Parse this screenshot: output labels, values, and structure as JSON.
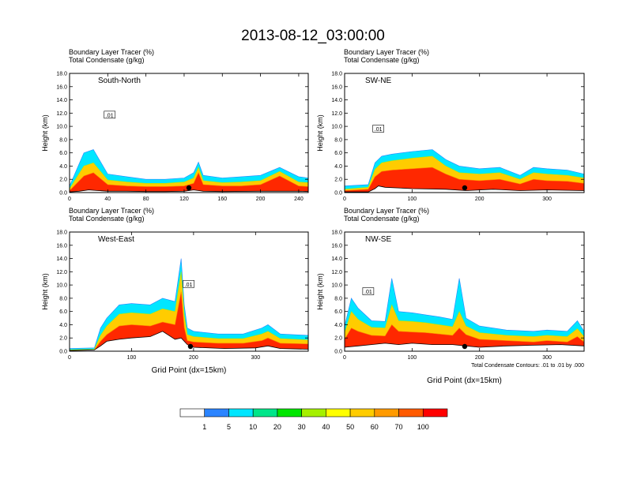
{
  "figure": {
    "title": "2013-08-12_03:00:00",
    "footnote": "Total Condensate Contours: .01 to .01 by .000"
  },
  "colorbar": {
    "labels": [
      "1",
      "5",
      "10",
      "20",
      "30",
      "40",
      "50",
      "60",
      "70",
      "100"
    ],
    "colors": [
      "#ffffff",
      "#2b84ff",
      "#00e6ff",
      "#00e68a",
      "#00e600",
      "#a5f000",
      "#ffff00",
      "#ffcc00",
      "#ff9a00",
      "#ff5a00",
      "#ff0000"
    ]
  },
  "chart_data": [
    {
      "type": "area",
      "panel_title": "South-North",
      "header_lines": [
        "Boundary Layer Tracer   (%)",
        "Total Condensate   (g/kg)"
      ],
      "ylabel": "Height (km)",
      "xlabel": "",
      "xlim": [
        0,
        250
      ],
      "ylim": [
        0,
        18
      ],
      "xticks": [
        0,
        40,
        80,
        120,
        160,
        200,
        240
      ],
      "yticks": [
        "0.0",
        "2.0",
        "4.0",
        "6.0",
        "8.0",
        "10.0",
        "12.0",
        "14.0",
        "16.0",
        "18.0"
      ],
      "contour_label": ".01",
      "marker_x": 125,
      "contour_label_at": [
        42,
        11.7
      ],
      "series": [
        {
          "x": [
            0,
            15,
            25,
            40,
            60,
            80,
            100,
            120,
            130,
            135,
            140,
            160,
            180,
            200,
            220,
            240,
            250
          ],
          "top": [
            1.0,
            6.0,
            6.5,
            2.8,
            2.4,
            2.0,
            2.0,
            2.2,
            3.0,
            4.6,
            2.6,
            2.2,
            2.4,
            2.6,
            3.8,
            2.4,
            2.2
          ]
        },
        {
          "x": [
            0,
            15,
            25,
            40,
            60,
            80,
            100,
            120,
            130,
            135,
            140,
            160,
            180,
            200,
            220,
            240,
            250
          ],
          "top": [
            0.6,
            4.0,
            4.5,
            1.9,
            1.6,
            1.4,
            1.4,
            1.6,
            2.2,
            3.8,
            1.8,
            1.5,
            1.6,
            1.8,
            3.2,
            1.6,
            1.5
          ]
        },
        {
          "x": [
            0,
            15,
            25,
            40,
            60,
            80,
            100,
            120,
            130,
            135,
            140,
            160,
            180,
            200,
            220,
            240,
            250
          ],
          "top": [
            0.3,
            2.5,
            3.0,
            1.2,
            1.0,
            0.9,
            0.9,
            1.0,
            1.4,
            3.0,
            1.2,
            1.0,
            1.0,
            1.2,
            2.5,
            1.0,
            0.9
          ]
        }
      ],
      "terrain": {
        "x": [
          0,
          10,
          20,
          30,
          40,
          60,
          80,
          100,
          120,
          130,
          140,
          160,
          200,
          240,
          250
        ],
        "h": [
          0.1,
          0.2,
          0.4,
          0.3,
          0.2,
          0.2,
          0.15,
          0.15,
          0.2,
          0.4,
          0.2,
          0.15,
          0.2,
          0.2,
          0.15
        ]
      }
    },
    {
      "type": "area",
      "panel_title": "SW-NE",
      "header_lines": [
        "Boundary Layer Tracer   (%)",
        "Total Condensate   (g/kg)"
      ],
      "ylabel": "Height (km)",
      "xlabel": "",
      "xlim": [
        0,
        355
      ],
      "ylim": [
        0,
        18
      ],
      "xticks": [
        0,
        100,
        200,
        300
      ],
      "yticks": [
        "0.0",
        "2.0",
        "4.0",
        "6.0",
        "8.0",
        "10.0",
        "12.0",
        "14.0",
        "16.0",
        "18.0"
      ],
      "contour_label": ".01",
      "marker_x": 178,
      "contour_label_at": [
        50,
        9.6
      ],
      "series": [
        {
          "x": [
            0,
            35,
            45,
            55,
            70,
            100,
            130,
            150,
            170,
            200,
            230,
            260,
            280,
            300,
            330,
            355
          ],
          "top": [
            1.0,
            1.2,
            4.5,
            5.5,
            5.8,
            6.2,
            6.5,
            5.0,
            4.0,
            3.6,
            3.8,
            2.6,
            3.8,
            3.6,
            3.4,
            2.8
          ]
        },
        {
          "x": [
            0,
            35,
            45,
            55,
            70,
            100,
            130,
            150,
            170,
            200,
            230,
            260,
            280,
            300,
            330,
            355
          ],
          "top": [
            0.5,
            0.8,
            3.5,
            4.5,
            4.8,
            5.2,
            5.5,
            4.0,
            3.0,
            2.8,
            3.0,
            2.0,
            3.0,
            2.8,
            2.6,
            2.2
          ]
        },
        {
          "x": [
            0,
            35,
            45,
            55,
            70,
            100,
            130,
            150,
            170,
            200,
            230,
            260,
            280,
            300,
            330,
            355
          ],
          "top": [
            0.3,
            0.5,
            2.4,
            3.2,
            3.4,
            3.6,
            3.8,
            2.8,
            2.0,
            1.8,
            2.0,
            1.3,
            2.0,
            1.8,
            1.7,
            1.4
          ]
        }
      ],
      "terrain": {
        "x": [
          0,
          35,
          45,
          50,
          60,
          100,
          150,
          180,
          220,
          260,
          300,
          355
        ],
        "h": [
          0.1,
          0.1,
          0.6,
          1.0,
          0.8,
          0.6,
          0.5,
          0.3,
          0.5,
          0.3,
          0.4,
          0.3
        ]
      }
    },
    {
      "type": "area",
      "panel_title": "West-East",
      "header_lines": [
        "Boundary Layer Tracer   (%)",
        "Total Condensate   (g/kg)"
      ],
      "ylabel": "Height (km)",
      "xlabel": "Grid Point (dx=15km)",
      "xlim": [
        0,
        385
      ],
      "ylim": [
        0,
        18
      ],
      "xticks": [
        0,
        100,
        200,
        300
      ],
      "yticks": [
        "0.0",
        "2.0",
        "4.0",
        "6.0",
        "8.0",
        "10.0",
        "12.0",
        "14.0",
        "16.0",
        "18.0"
      ],
      "contour_label": ".01",
      "marker_x": 195,
      "contour_label_at": [
        192,
        10.1
      ],
      "series": [
        {
          "x": [
            0,
            40,
            50,
            60,
            80,
            100,
            130,
            150,
            170,
            180,
            185,
            190,
            200,
            240,
            280,
            310,
            320,
            340,
            385
          ],
          "top": [
            0.4,
            0.5,
            3.5,
            5.0,
            7.0,
            7.2,
            7.0,
            8.0,
            7.5,
            14.0,
            7.0,
            3.5,
            3.0,
            2.6,
            2.6,
            3.5,
            4.0,
            2.6,
            2.4
          ]
        },
        {
          "x": [
            0,
            40,
            50,
            60,
            80,
            100,
            130,
            150,
            170,
            180,
            185,
            190,
            200,
            240,
            280,
            310,
            320,
            340,
            385
          ],
          "top": [
            0.2,
            0.3,
            2.4,
            3.8,
            5.6,
            5.8,
            5.6,
            6.4,
            6.0,
            12.0,
            5.5,
            2.5,
            2.2,
            1.9,
            1.9,
            2.6,
            3.0,
            1.9,
            1.7
          ]
        },
        {
          "x": [
            0,
            40,
            50,
            60,
            80,
            100,
            130,
            150,
            170,
            180,
            185,
            190,
            200,
            240,
            280,
            310,
            320,
            340,
            385
          ],
          "top": [
            0.1,
            0.2,
            1.5,
            2.5,
            3.8,
            4.0,
            3.8,
            4.4,
            4.0,
            9.0,
            3.6,
            1.6,
            1.4,
            1.2,
            1.2,
            1.6,
            2.0,
            1.2,
            1.1
          ]
        }
      ],
      "terrain": {
        "x": [
          0,
          40,
          50,
          60,
          80,
          100,
          130,
          150,
          170,
          180,
          190,
          200,
          250,
          300,
          320,
          340,
          385
        ],
        "h": [
          0.1,
          0.2,
          0.8,
          1.5,
          1.8,
          2.0,
          2.2,
          3.0,
          1.8,
          2.0,
          1.0,
          0.6,
          0.4,
          0.5,
          0.8,
          0.4,
          0.3
        ]
      }
    },
    {
      "type": "area",
      "panel_title": "NW-SE",
      "header_lines": [
        "Boundary Layer Tracer   (%)",
        "Total Condensate   (g/kg)"
      ],
      "ylabel": "Height (km)",
      "xlabel": "Grid Point (dx=15km)",
      "xlim": [
        0,
        355
      ],
      "ylim": [
        0,
        18
      ],
      "xticks": [
        0,
        100,
        200,
        300
      ],
      "yticks": [
        "0.0",
        "2.0",
        "4.0",
        "6.0",
        "8.0",
        "10.0",
        "12.0",
        "14.0",
        "16.0",
        "18.0"
      ],
      "contour_label": ".01",
      "marker_x": 178,
      "contour_label_at": [
        35,
        9.0
      ],
      "series": [
        {
          "x": [
            0,
            10,
            20,
            40,
            60,
            70,
            80,
            100,
            120,
            140,
            160,
            170,
            180,
            200,
            240,
            280,
            300,
            330,
            345,
            355
          ],
          "top": [
            3.8,
            8.0,
            6.5,
            4.6,
            4.5,
            11.0,
            6.0,
            5.8,
            5.5,
            5.2,
            4.8,
            11.0,
            5.0,
            3.8,
            3.2,
            3.0,
            3.2,
            3.0,
            4.6,
            3.0
          ]
        },
        {
          "x": [
            0,
            10,
            20,
            40,
            60,
            70,
            80,
            100,
            120,
            140,
            160,
            170,
            180,
            200,
            240,
            280,
            300,
            330,
            345,
            355
          ],
          "top": [
            2.8,
            6.0,
            4.8,
            3.6,
            3.5,
            7.0,
            4.6,
            4.5,
            4.3,
            4.0,
            3.7,
            6.0,
            3.8,
            2.8,
            2.4,
            2.2,
            2.4,
            2.2,
            3.4,
            2.2
          ]
        },
        {
          "x": [
            0,
            10,
            20,
            40,
            60,
            70,
            80,
            100,
            120,
            140,
            160,
            170,
            180,
            200,
            240,
            280,
            300,
            330,
            345,
            355
          ],
          "top": [
            1.8,
            3.5,
            3.0,
            2.4,
            2.3,
            4.0,
            3.0,
            2.9,
            2.8,
            2.6,
            2.4,
            3.5,
            2.5,
            1.8,
            1.6,
            1.4,
            1.6,
            1.4,
            2.2,
            1.4
          ]
        }
      ],
      "terrain": {
        "x": [
          0,
          20,
          40,
          60,
          80,
          100,
          130,
          160,
          180,
          200,
          240,
          280,
          320,
          355
        ],
        "h": [
          0.6,
          0.8,
          1.0,
          1.2,
          1.0,
          1.2,
          1.0,
          1.0,
          0.8,
          0.6,
          0.8,
          0.9,
          1.0,
          0.8
        ]
      }
    }
  ]
}
